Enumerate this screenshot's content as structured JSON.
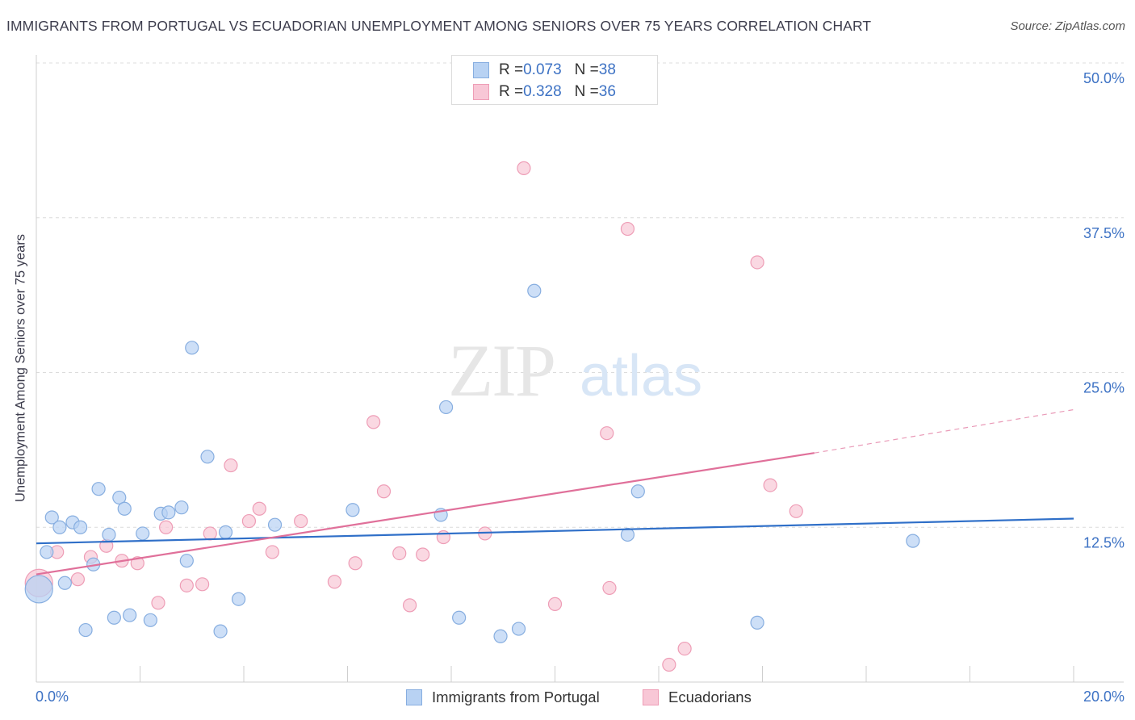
{
  "header": {
    "title": "IMMIGRANTS FROM PORTUGAL VS ECUADORIAN UNEMPLOYMENT AMONG SENIORS OVER 75 YEARS CORRELATION CHART",
    "source": "Source: ZipAtlas.com"
  },
  "watermark": {
    "zip": "ZIP",
    "atlas": "atlas"
  },
  "legend": {
    "series1": {
      "r_label": "R = ",
      "r_value": "0.073",
      "n_label": "N = ",
      "n_value": "38"
    },
    "series2": {
      "r_label": "R = ",
      "r_value": "0.328",
      "n_label": "N = ",
      "n_value": "36"
    }
  },
  "colors": {
    "blue_fill": "#b8d2f3",
    "blue_stroke": "#87aee0",
    "blue_line": "#2f6fc8",
    "pink_fill": "#f8c7d6",
    "pink_stroke": "#ee9db6",
    "pink_line": "#e0709a",
    "axis_text": "#3d72c4",
    "grid": "#dcdcdc"
  },
  "chart_data": {
    "type": "scatter",
    "title": "IMMIGRANTS FROM PORTUGAL VS ECUADORIAN UNEMPLOYMENT AMONG SENIORS OVER 75 YEARS CORRELATION CHART",
    "xlabel": "",
    "ylabel": "Unemployment Among Seniors over 75 years",
    "xlim": [
      0,
      20
    ],
    "ylim": [
      0,
      50
    ],
    "x_tick_labels": [
      "0.0%",
      "20.0%"
    ],
    "y_ticks": [
      12.5,
      25.0,
      37.5,
      50.0
    ],
    "y_tick_labels": [
      "12.5%",
      "25.0%",
      "37.5%",
      "50.0%"
    ],
    "legend_position": "top-center",
    "series": [
      {
        "name": "Immigrants from Portugal",
        "R": 0.073,
        "N": 38,
        "trend": {
          "x": [
            0,
            20
          ],
          "y": [
            11.2,
            13.2
          ]
        },
        "points": [
          {
            "x": 0.05,
            "y": 7.5,
            "big": true
          },
          {
            "x": 0.2,
            "y": 10.5
          },
          {
            "x": 0.3,
            "y": 13.3
          },
          {
            "x": 0.45,
            "y": 12.5
          },
          {
            "x": 0.55,
            "y": 8.0
          },
          {
            "x": 0.7,
            "y": 12.9
          },
          {
            "x": 0.85,
            "y": 12.5
          },
          {
            "x": 0.95,
            "y": 4.2
          },
          {
            "x": 1.1,
            "y": 9.5
          },
          {
            "x": 1.2,
            "y": 15.6
          },
          {
            "x": 1.4,
            "y": 11.9
          },
          {
            "x": 1.5,
            "y": 5.2
          },
          {
            "x": 1.6,
            "y": 14.9
          },
          {
            "x": 1.7,
            "y": 14.0
          },
          {
            "x": 1.8,
            "y": 5.4
          },
          {
            "x": 2.05,
            "y": 12.0
          },
          {
            "x": 2.2,
            "y": 5.0
          },
          {
            "x": 2.4,
            "y": 13.6
          },
          {
            "x": 2.55,
            "y": 13.7
          },
          {
            "x": 2.8,
            "y": 14.1
          },
          {
            "x": 2.9,
            "y": 9.8
          },
          {
            "x": 3.0,
            "y": 27.0
          },
          {
            "x": 3.3,
            "y": 18.2
          },
          {
            "x": 3.55,
            "y": 4.1
          },
          {
            "x": 3.65,
            "y": 12.1
          },
          {
            "x": 3.9,
            "y": 6.7
          },
          {
            "x": 4.6,
            "y": 12.7
          },
          {
            "x": 6.1,
            "y": 13.9
          },
          {
            "x": 7.8,
            "y": 13.5
          },
          {
            "x": 7.9,
            "y": 22.2
          },
          {
            "x": 8.15,
            "y": 5.2
          },
          {
            "x": 8.95,
            "y": 3.7
          },
          {
            "x": 9.3,
            "y": 4.3
          },
          {
            "x": 9.6,
            "y": 31.6
          },
          {
            "x": 11.4,
            "y": 11.9
          },
          {
            "x": 11.6,
            "y": 15.4
          },
          {
            "x": 13.9,
            "y": 4.8
          },
          {
            "x": 16.9,
            "y": 11.4
          }
        ]
      },
      {
        "name": "Ecuadorians",
        "R": 0.328,
        "N": 36,
        "trend": {
          "x": [
            0,
            15
          ],
          "y": [
            8.7,
            18.5
          ]
        },
        "trend_dashed": {
          "x": [
            15,
            20
          ],
          "y": [
            18.5,
            22.0
          ]
        },
        "points": [
          {
            "x": 0.05,
            "y": 8.0,
            "big": true
          },
          {
            "x": 0.4,
            "y": 10.5
          },
          {
            "x": 0.8,
            "y": 8.3
          },
          {
            "x": 1.05,
            "y": 10.1
          },
          {
            "x": 1.35,
            "y": 11.0
          },
          {
            "x": 1.65,
            "y": 9.8
          },
          {
            "x": 1.95,
            "y": 9.6
          },
          {
            "x": 2.35,
            "y": 6.4
          },
          {
            "x": 2.5,
            "y": 12.5
          },
          {
            "x": 2.9,
            "y": 7.8
          },
          {
            "x": 3.2,
            "y": 7.9
          },
          {
            "x": 3.35,
            "y": 12.0
          },
          {
            "x": 3.75,
            "y": 17.5
          },
          {
            "x": 4.1,
            "y": 13.0
          },
          {
            "x": 4.3,
            "y": 14.0
          },
          {
            "x": 4.55,
            "y": 10.5
          },
          {
            "x": 5.1,
            "y": 13.0
          },
          {
            "x": 5.75,
            "y": 8.1
          },
          {
            "x": 6.15,
            "y": 9.6
          },
          {
            "x": 6.5,
            "y": 21.0
          },
          {
            "x": 6.7,
            "y": 15.4
          },
          {
            "x": 7.0,
            "y": 10.4
          },
          {
            "x": 7.2,
            "y": 6.2
          },
          {
            "x": 7.45,
            "y": 10.3
          },
          {
            "x": 7.85,
            "y": 11.7
          },
          {
            "x": 8.65,
            "y": 12.0
          },
          {
            "x": 9.4,
            "y": 41.5
          },
          {
            "x": 10.0,
            "y": 6.3
          },
          {
            "x": 11.0,
            "y": 20.1
          },
          {
            "x": 11.05,
            "y": 7.6
          },
          {
            "x": 11.4,
            "y": 36.6
          },
          {
            "x": 12.2,
            "y": 1.4
          },
          {
            "x": 12.5,
            "y": 2.7
          },
          {
            "x": 13.9,
            "y": 33.9
          },
          {
            "x": 14.15,
            "y": 15.9
          },
          {
            "x": 14.65,
            "y": 13.8
          }
        ]
      }
    ]
  }
}
